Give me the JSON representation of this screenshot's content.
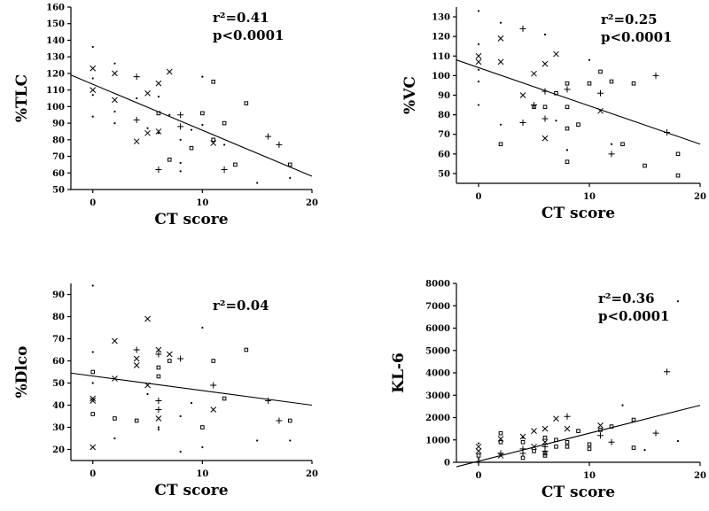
{
  "chart_data": [
    {
      "type": "scatter",
      "ylabel": "%TLC",
      "xlabel": "CT score",
      "annotations": [
        "r²=0.41",
        "p<0.0001"
      ],
      "xlim": [
        -2,
        20
      ],
      "ylim": [
        50,
        160
      ],
      "xticks": [
        0,
        10,
        20
      ],
      "yticks": [
        50,
        60,
        70,
        80,
        90,
        100,
        110,
        120,
        130,
        140,
        150,
        160
      ],
      "fit_line": {
        "x": [
          -2,
          20
        ],
        "y": [
          119,
          58
        ]
      },
      "points": [
        {
          "x": 0,
          "y": 123,
          "m": "x"
        },
        {
          "x": 0,
          "y": 110,
          "m": "x"
        },
        {
          "x": 0,
          "y": 136,
          "m": "."
        },
        {
          "x": 0,
          "y": 117,
          "m": "."
        },
        {
          "x": 0,
          "y": 94,
          "m": "."
        },
        {
          "x": 0,
          "y": 107,
          "m": "."
        },
        {
          "x": 2,
          "y": 120,
          "m": "x"
        },
        {
          "x": 2,
          "y": 104,
          "m": "x"
        },
        {
          "x": 2,
          "y": 126,
          "m": "."
        },
        {
          "x": 2,
          "y": 97,
          "m": "."
        },
        {
          "x": 2,
          "y": 90,
          "m": "."
        },
        {
          "x": 4,
          "y": 118,
          "m": "+"
        },
        {
          "x": 4,
          "y": 92,
          "m": "+"
        },
        {
          "x": 4,
          "y": 79,
          "m": "x"
        },
        {
          "x": 4,
          "y": 105,
          "m": "."
        },
        {
          "x": 5,
          "y": 108,
          "m": "x"
        },
        {
          "x": 5,
          "y": 84,
          "m": "x"
        },
        {
          "x": 5,
          "y": 87,
          "m": "."
        },
        {
          "x": 6,
          "y": 114,
          "m": "x"
        },
        {
          "x": 6,
          "y": 85,
          "m": "x"
        },
        {
          "x": 6,
          "y": 62,
          "m": "+"
        },
        {
          "x": 6,
          "y": 96,
          "m": "o"
        },
        {
          "x": 6,
          "y": 84,
          "m": "."
        },
        {
          "x": 6,
          "y": 106,
          "m": "."
        },
        {
          "x": 7,
          "y": 121,
          "m": "x"
        },
        {
          "x": 7,
          "y": 68,
          "m": "o"
        },
        {
          "x": 7,
          "y": 95,
          "m": "."
        },
        {
          "x": 8,
          "y": 95,
          "m": "+"
        },
        {
          "x": 8,
          "y": 88,
          "m": "+"
        },
        {
          "x": 8,
          "y": 80,
          "m": "."
        },
        {
          "x": 8,
          "y": 66,
          "m": "."
        },
        {
          "x": 8,
          "y": 61,
          "m": "."
        },
        {
          "x": 9,
          "y": 75,
          "m": "o"
        },
        {
          "x": 9,
          "y": 86,
          "m": "."
        },
        {
          "x": 10,
          "y": 96,
          "m": "o"
        },
        {
          "x": 10,
          "y": 89,
          "m": "."
        },
        {
          "x": 10,
          "y": 118,
          "m": "."
        },
        {
          "x": 11,
          "y": 115,
          "m": "o"
        },
        {
          "x": 11,
          "y": 78,
          "m": "x"
        },
        {
          "x": 11,
          "y": 80,
          "m": "o"
        },
        {
          "x": 12,
          "y": 90,
          "m": "o"
        },
        {
          "x": 12,
          "y": 77,
          "m": "."
        },
        {
          "x": 12,
          "y": 62,
          "m": "+"
        },
        {
          "x": 13,
          "y": 65,
          "m": "o"
        },
        {
          "x": 14,
          "y": 102,
          "m": "o"
        },
        {
          "x": 15,
          "y": 54,
          "m": "."
        },
        {
          "x": 16,
          "y": 82,
          "m": "+"
        },
        {
          "x": 17,
          "y": 77,
          "m": "+"
        },
        {
          "x": 18,
          "y": 65,
          "m": "o"
        },
        {
          "x": 18,
          "y": 57,
          "m": "."
        }
      ]
    },
    {
      "type": "scatter",
      "ylabel": "%VC",
      "xlabel": "CT score",
      "annotations": [
        "r²=0.25",
        "p<0.0001"
      ],
      "xlim": [
        -2,
        20
      ],
      "ylim": [
        45,
        135
      ],
      "xticks": [
        0,
        10,
        20
      ],
      "yticks": [
        50,
        60,
        70,
        80,
        90,
        100,
        110,
        120,
        130
      ],
      "fit_line": {
        "x": [
          -2,
          20
        ],
        "y": [
          108,
          65
        ]
      },
      "points": [
        {
          "x": 0,
          "y": 110,
          "m": "x"
        },
        {
          "x": 0,
          "y": 107,
          "m": "x"
        },
        {
          "x": 0,
          "y": 133,
          "m": "."
        },
        {
          "x": 0,
          "y": 116,
          "m": "."
        },
        {
          "x": 0,
          "y": 97,
          "m": "."
        },
        {
          "x": 0,
          "y": 85,
          "m": "."
        },
        {
          "x": 0,
          "y": 103,
          "m": "."
        },
        {
          "x": 2,
          "y": 119,
          "m": "x"
        },
        {
          "x": 2,
          "y": 107,
          "m": "x"
        },
        {
          "x": 2,
          "y": 65,
          "m": "o"
        },
        {
          "x": 2,
          "y": 75,
          "m": "."
        },
        {
          "x": 2,
          "y": 127,
          "m": "."
        },
        {
          "x": 4,
          "y": 124,
          "m": "+"
        },
        {
          "x": 4,
          "y": 90,
          "m": "x"
        },
        {
          "x": 4,
          "y": 76,
          "m": "+"
        },
        {
          "x": 5,
          "y": 101,
          "m": "x"
        },
        {
          "x": 5,
          "y": 85,
          "m": "+"
        },
        {
          "x": 5,
          "y": 84,
          "m": "o"
        },
        {
          "x": 6,
          "y": 106,
          "m": "x"
        },
        {
          "x": 6,
          "y": 92,
          "m": "+"
        },
        {
          "x": 6,
          "y": 78,
          "m": "+"
        },
        {
          "x": 6,
          "y": 68,
          "m": "x"
        },
        {
          "x": 6,
          "y": 84,
          "m": "o"
        },
        {
          "x": 6,
          "y": 121,
          "m": "."
        },
        {
          "x": 7,
          "y": 111,
          "m": "x"
        },
        {
          "x": 7,
          "y": 91,
          "m": "o"
        },
        {
          "x": 7,
          "y": 77,
          "m": "."
        },
        {
          "x": 8,
          "y": 96,
          "m": "o"
        },
        {
          "x": 8,
          "y": 93,
          "m": "+"
        },
        {
          "x": 8,
          "y": 84,
          "m": "o"
        },
        {
          "x": 8,
          "y": 73,
          "m": "o"
        },
        {
          "x": 8,
          "y": 56,
          "m": "o"
        },
        {
          "x": 8,
          "y": 62,
          "m": "."
        },
        {
          "x": 9,
          "y": 75,
          "m": "o"
        },
        {
          "x": 10,
          "y": 108,
          "m": "."
        },
        {
          "x": 10,
          "y": 96,
          "m": "o"
        },
        {
          "x": 11,
          "y": 102,
          "m": "o"
        },
        {
          "x": 11,
          "y": 91,
          "m": "+"
        },
        {
          "x": 11,
          "y": 82,
          "m": "x"
        },
        {
          "x": 12,
          "y": 97,
          "m": "o"
        },
        {
          "x": 12,
          "y": 65,
          "m": "."
        },
        {
          "x": 12,
          "y": 60,
          "m": "+"
        },
        {
          "x": 13,
          "y": 65,
          "m": "o"
        },
        {
          "x": 14,
          "y": 96,
          "m": "o"
        },
        {
          "x": 15,
          "y": 54,
          "m": "o"
        },
        {
          "x": 16,
          "y": 100,
          "m": "+"
        },
        {
          "x": 17,
          "y": 71,
          "m": "+"
        },
        {
          "x": 18,
          "y": 60,
          "m": "o"
        },
        {
          "x": 18,
          "y": 49,
          "m": "o"
        }
      ]
    },
    {
      "type": "scatter",
      "ylabel": "%Dlco",
      "xlabel": "CT score",
      "annotations": [
        "r²=0.04"
      ],
      "xlim": [
        -2,
        20
      ],
      "ylim": [
        15,
        95
      ],
      "xticks": [
        0,
        10,
        20
      ],
      "yticks": [
        20,
        30,
        40,
        50,
        60,
        70,
        80,
        90
      ],
      "fit_line": {
        "x": [
          -2,
          20
        ],
        "y": [
          54.5,
          40
        ]
      },
      "points": [
        {
          "x": 0,
          "y": 94,
          "m": "."
        },
        {
          "x": 0,
          "y": 64,
          "m": "."
        },
        {
          "x": 0,
          "y": 55,
          "m": "o"
        },
        {
          "x": 0,
          "y": 43,
          "m": "x"
        },
        {
          "x": 0,
          "y": 42,
          "m": "x"
        },
        {
          "x": 0,
          "y": 36,
          "m": "o"
        },
        {
          "x": 0,
          "y": 21,
          "m": "x"
        },
        {
          "x": 0,
          "y": 50,
          "m": "."
        },
        {
          "x": 2,
          "y": 69,
          "m": "x"
        },
        {
          "x": 2,
          "y": 52,
          "m": "x"
        },
        {
          "x": 2,
          "y": 34,
          "m": "o"
        },
        {
          "x": 2,
          "y": 25,
          "m": "."
        },
        {
          "x": 4,
          "y": 65,
          "m": "+"
        },
        {
          "x": 4,
          "y": 61,
          "m": "x"
        },
        {
          "x": 4,
          "y": 58,
          "m": "x"
        },
        {
          "x": 4,
          "y": 33,
          "m": "o"
        },
        {
          "x": 5,
          "y": 79,
          "m": "x"
        },
        {
          "x": 5,
          "y": 49,
          "m": "x"
        },
        {
          "x": 5,
          "y": 45,
          "m": "."
        },
        {
          "x": 6,
          "y": 65,
          "m": "x"
        },
        {
          "x": 6,
          "y": 63,
          "m": "+"
        },
        {
          "x": 6,
          "y": 57,
          "m": "o"
        },
        {
          "x": 6,
          "y": 53,
          "m": "o"
        },
        {
          "x": 6,
          "y": 42,
          "m": "+"
        },
        {
          "x": 6,
          "y": 38,
          "m": "+"
        },
        {
          "x": 6,
          "y": 34,
          "m": "x"
        },
        {
          "x": 6,
          "y": 30,
          "m": "."
        },
        {
          "x": 6,
          "y": 29,
          "m": "."
        },
        {
          "x": 7,
          "y": 63,
          "m": "x"
        },
        {
          "x": 7,
          "y": 60,
          "m": "o"
        },
        {
          "x": 8,
          "y": 61,
          "m": "+"
        },
        {
          "x": 8,
          "y": 35,
          "m": "."
        },
        {
          "x": 8,
          "y": 19,
          "m": "."
        },
        {
          "x": 9,
          "y": 41,
          "m": "."
        },
        {
          "x": 10,
          "y": 75,
          "m": "."
        },
        {
          "x": 10,
          "y": 30,
          "m": "o"
        },
        {
          "x": 10,
          "y": 21,
          "m": "."
        },
        {
          "x": 11,
          "y": 60,
          "m": "o"
        },
        {
          "x": 11,
          "y": 49,
          "m": "+"
        },
        {
          "x": 11,
          "y": 38,
          "m": "x"
        },
        {
          "x": 12,
          "y": 43,
          "m": "o"
        },
        {
          "x": 14,
          "y": 65,
          "m": "o"
        },
        {
          "x": 15,
          "y": 24,
          "m": "."
        },
        {
          "x": 16,
          "y": 42,
          "m": "+"
        },
        {
          "x": 17,
          "y": 33,
          "m": "+"
        },
        {
          "x": 18,
          "y": 33,
          "m": "o"
        },
        {
          "x": 18,
          "y": 24,
          "m": "."
        }
      ]
    },
    {
      "type": "scatter",
      "ylabel": "KL-6",
      "xlabel": "CT score",
      "annotations": [
        "r²=0.36",
        "p<0.0001"
      ],
      "xlim": [
        -2,
        20
      ],
      "ylim": [
        0,
        8000
      ],
      "xticks": [
        0,
        10,
        20
      ],
      "yticks": [
        0,
        1000,
        2000,
        3000,
        4000,
        5000,
        6000,
        7000,
        8000
      ],
      "fit_line": {
        "x": [
          -2,
          20
        ],
        "y": [
          -200,
          2550
        ]
      },
      "points": [
        {
          "x": 0,
          "y": 700,
          "m": "x"
        },
        {
          "x": 0,
          "y": 500,
          "m": "x"
        },
        {
          "x": 0,
          "y": 300,
          "m": "o"
        },
        {
          "x": 0,
          "y": 150,
          "m": "."
        },
        {
          "x": 0,
          "y": 850,
          "m": "."
        },
        {
          "x": 0,
          "y": 50,
          "m": "."
        },
        {
          "x": 2,
          "y": 1300,
          "m": "o"
        },
        {
          "x": 2,
          "y": 1050,
          "m": "x"
        },
        {
          "x": 2,
          "y": 900,
          "m": "o"
        },
        {
          "x": 2,
          "y": 400,
          "m": "+"
        },
        {
          "x": 2,
          "y": 300,
          "m": "x"
        },
        {
          "x": 4,
          "y": 1150,
          "m": "x"
        },
        {
          "x": 4,
          "y": 900,
          "m": "o"
        },
        {
          "x": 4,
          "y": 600,
          "m": "+"
        },
        {
          "x": 4,
          "y": 400,
          "m": "+"
        },
        {
          "x": 4,
          "y": 200,
          "m": "o"
        },
        {
          "x": 4,
          "y": 1100,
          "m": "."
        },
        {
          "x": 5,
          "y": 1400,
          "m": "x"
        },
        {
          "x": 5,
          "y": 700,
          "m": "x"
        },
        {
          "x": 5,
          "y": 500,
          "m": "o"
        },
        {
          "x": 6,
          "y": 1500,
          "m": "x"
        },
        {
          "x": 6,
          "y": 1100,
          "m": "o"
        },
        {
          "x": 6,
          "y": 900,
          "m": "x"
        },
        {
          "x": 6,
          "y": 700,
          "m": "+"
        },
        {
          "x": 6,
          "y": 500,
          "m": "+"
        },
        {
          "x": 6,
          "y": 400,
          "m": "o"
        },
        {
          "x": 6,
          "y": 300,
          "m": "o"
        },
        {
          "x": 7,
          "y": 1950,
          "m": "x"
        },
        {
          "x": 7,
          "y": 1000,
          "m": "o"
        },
        {
          "x": 7,
          "y": 700,
          "m": "o"
        },
        {
          "x": 8,
          "y": 2050,
          "m": "+"
        },
        {
          "x": 8,
          "y": 1500,
          "m": "x"
        },
        {
          "x": 8,
          "y": 900,
          "m": "o"
        },
        {
          "x": 8,
          "y": 700,
          "m": "o"
        },
        {
          "x": 9,
          "y": 1400,
          "m": "o"
        },
        {
          "x": 10,
          "y": 800,
          "m": "o"
        },
        {
          "x": 10,
          "y": 600,
          "m": "o"
        },
        {
          "x": 11,
          "y": 1650,
          "m": "x"
        },
        {
          "x": 11,
          "y": 1450,
          "m": "o"
        },
        {
          "x": 11,
          "y": 1200,
          "m": "+"
        },
        {
          "x": 12,
          "y": 1600,
          "m": "o"
        },
        {
          "x": 12,
          "y": 900,
          "m": "+"
        },
        {
          "x": 13,
          "y": 2550,
          "m": "."
        },
        {
          "x": 14,
          "y": 1900,
          "m": "o"
        },
        {
          "x": 14,
          "y": 650,
          "m": "o"
        },
        {
          "x": 15,
          "y": 550,
          "m": "."
        },
        {
          "x": 16,
          "y": 1300,
          "m": "+"
        },
        {
          "x": 17,
          "y": 4050,
          "m": "+"
        },
        {
          "x": 18,
          "y": 7200,
          "m": "."
        },
        {
          "x": 18,
          "y": 950,
          "m": "."
        }
      ]
    }
  ]
}
